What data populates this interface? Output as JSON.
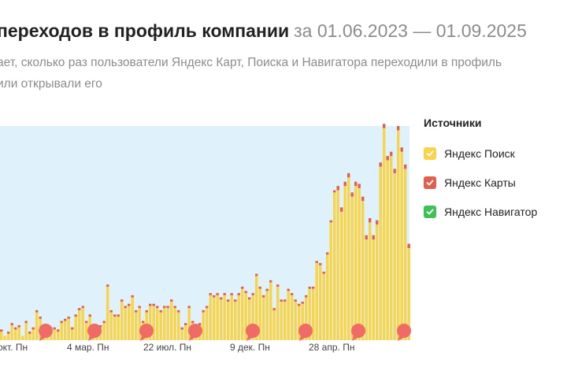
{
  "header": {
    "title": "переходов в профиль компании",
    "period": "за 01.06.2023 — 01.09.2025"
  },
  "description": {
    "line1": "ает, сколько раз пользователи Яндекс Карт, Поиска и Навигатора переходили в профиль",
    "line2": "или открывали его"
  },
  "legend": {
    "title": "Источники",
    "items": [
      {
        "label": "Яндекс Поиск",
        "color": "#f7d44a"
      },
      {
        "label": "Яндекс Карты",
        "color": "#e05f4f"
      },
      {
        "label": "Яндекс Навигатор",
        "color": "#3fc157"
      }
    ]
  },
  "chart_data": {
    "type": "bar",
    "stacked": true,
    "ylim": [
      0,
      100
    ],
    "x_tick_labels": [
      "окт. Пн",
      "4 мар. Пн",
      "22 июл. Пн",
      "9 дек. Пн",
      "28 апр. Пн"
    ],
    "series": [
      {
        "name": "Яндекс Поиск",
        "color": "#f7d44a",
        "values": [
          4,
          2,
          3,
          7,
          5,
          6,
          2,
          8,
          3,
          5,
          13,
          10,
          6,
          3,
          5,
          5,
          4,
          8,
          9,
          10,
          5,
          11,
          14,
          15,
          8,
          11,
          5,
          5,
          6,
          8,
          25,
          13,
          11,
          11,
          18,
          15,
          16,
          20,
          13,
          15,
          8,
          13,
          16,
          16,
          15,
          13,
          15,
          15,
          18,
          15,
          13,
          5,
          7,
          15,
          8,
          6,
          7,
          13,
          15,
          21,
          20,
          21,
          19,
          21,
          18,
          21,
          18,
          21,
          24,
          22,
          19,
          21,
          30,
          24,
          20,
          23,
          27,
          14,
          25,
          18,
          18,
          23,
          21,
          18,
          16,
          17,
          20,
          24,
          24,
          36,
          35,
          31,
          40,
          55,
          69,
          70,
          60,
          72,
          76,
          67,
          72,
          71,
          65,
          47,
          55,
          47,
          54,
          81,
          99,
          84,
          86,
          78,
          98,
          88,
          80,
          43
        ]
      },
      {
        "name": "Яндекс Карты",
        "color": "#e05f4f",
        "values": [
          1,
          0,
          1,
          1,
          1,
          1,
          0,
          1,
          1,
          1,
          1,
          1,
          1,
          0,
          1,
          1,
          1,
          1,
          1,
          1,
          1,
          1,
          1,
          1,
          1,
          1,
          1,
          1,
          1,
          1,
          1,
          1,
          1,
          1,
          1,
          1,
          1,
          1,
          1,
          1,
          1,
          1,
          1,
          1,
          1,
          1,
          1,
          1,
          1,
          1,
          1,
          1,
          1,
          1,
          1,
          1,
          1,
          1,
          1,
          1,
          1,
          1,
          1,
          1,
          1,
          1,
          1,
          1,
          1,
          1,
          1,
          1,
          1,
          1,
          1,
          1,
          1,
          1,
          1,
          1,
          1,
          1,
          1,
          1,
          1,
          1,
          1,
          1,
          1,
          1,
          1,
          1,
          1,
          1,
          1,
          2,
          2,
          2,
          2,
          2,
          2,
          2,
          2,
          2,
          2,
          2,
          2,
          2,
          2,
          2,
          2,
          2,
          2,
          2,
          2,
          2
        ]
      },
      {
        "name": "Яндекс Навигатор",
        "color": "#3fc157",
        "values": [
          0,
          0,
          0,
          0,
          0,
          0,
          0,
          0,
          0,
          0,
          0,
          0,
          0,
          0,
          0,
          0,
          0,
          0,
          0,
          0,
          0,
          0,
          0,
          0,
          0,
          0,
          0,
          0,
          0,
          0,
          0,
          0,
          0,
          0,
          0,
          0,
          0,
          0,
          0,
          0,
          0,
          0,
          0,
          0,
          0,
          0,
          0,
          0,
          0,
          0,
          0,
          0,
          0,
          0,
          0,
          0,
          0,
          0,
          0,
          0,
          0,
          0,
          0,
          0,
          0,
          0,
          0,
          0,
          0,
          0,
          0,
          0,
          0,
          0,
          0,
          0,
          0,
          0,
          0,
          0,
          0,
          0,
          0,
          0,
          0,
          0,
          0,
          0,
          0,
          0,
          0,
          0,
          0,
          0,
          0,
          0,
          0,
          0,
          0,
          0,
          0,
          0,
          0,
          0,
          0,
          0,
          0,
          0,
          0,
          0,
          0,
          0,
          0,
          0,
          0,
          0
        ]
      }
    ]
  }
}
